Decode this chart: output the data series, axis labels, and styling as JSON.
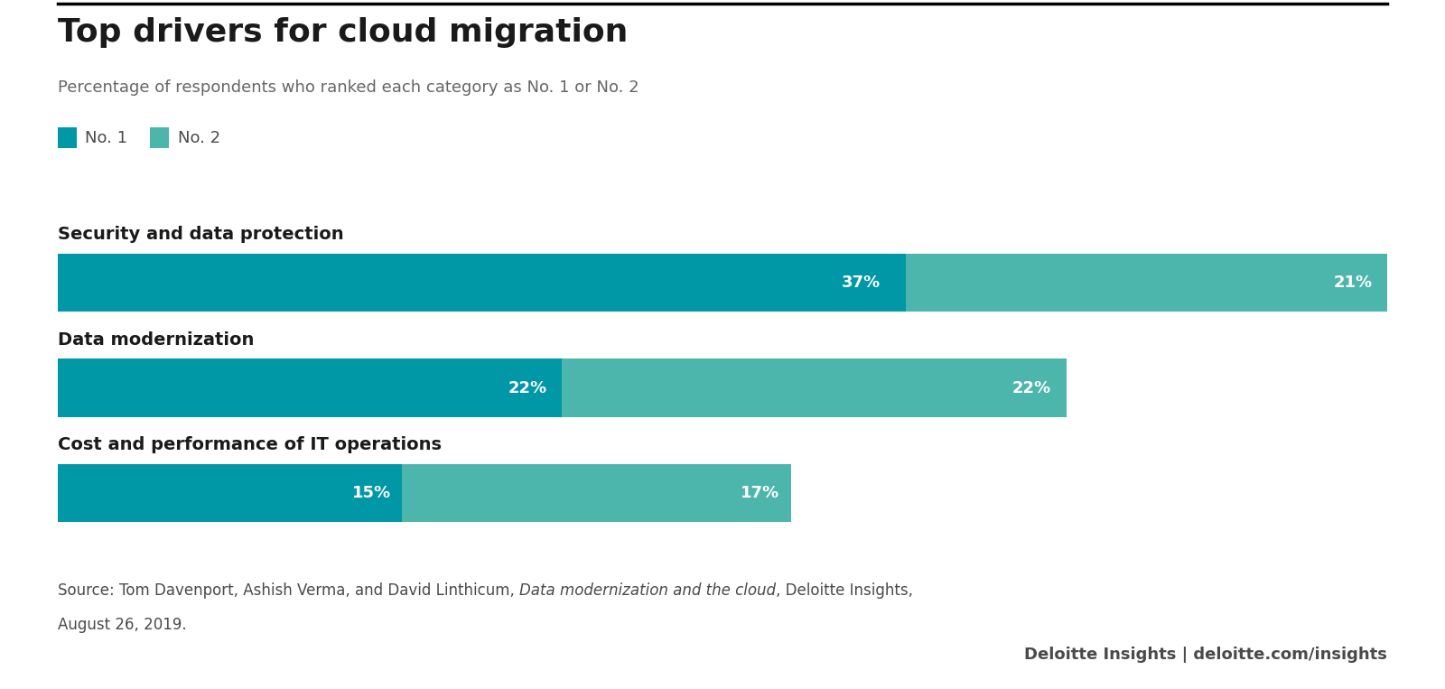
{
  "title": "Top drivers for cloud migration",
  "subtitle": "Percentage of respondents who ranked each category as No. 1 or No. 2",
  "legend_labels": [
    "No. 1",
    "No. 2"
  ],
  "color_no1": "#0097A7",
  "color_no2": "#4DB6AC",
  "background_color": "#ffffff",
  "categories": [
    "Security and data protection",
    "Data modernization",
    "Cost and performance of IT operations"
  ],
  "values_no1": [
    37,
    22,
    15
  ],
  "values_no2": [
    21,
    22,
    17
  ],
  "xlim_max": 58,
  "bar_height": 0.55,
  "source_pre": "Source: Tom Davenport, Ashish Verma, and David Linthicum, ",
  "source_italic": "Data modernization and the cloud",
  "source_post": ", Deloitte Insights,",
  "source_line2": "August 26, 2019.",
  "branding_text": "Deloitte Insights | deloitte.com/insights",
  "title_fontsize": 26,
  "subtitle_fontsize": 13,
  "category_fontsize": 14,
  "bar_label_fontsize": 13,
  "source_fontsize": 12,
  "branding_fontsize": 13,
  "legend_fontsize": 13,
  "text_color": "#4a4a4a",
  "label_color_white": "#ffffff",
  "title_color": "#1a1a1a",
  "category_color": "#1a1a1a",
  "subtitle_color": "#666666"
}
